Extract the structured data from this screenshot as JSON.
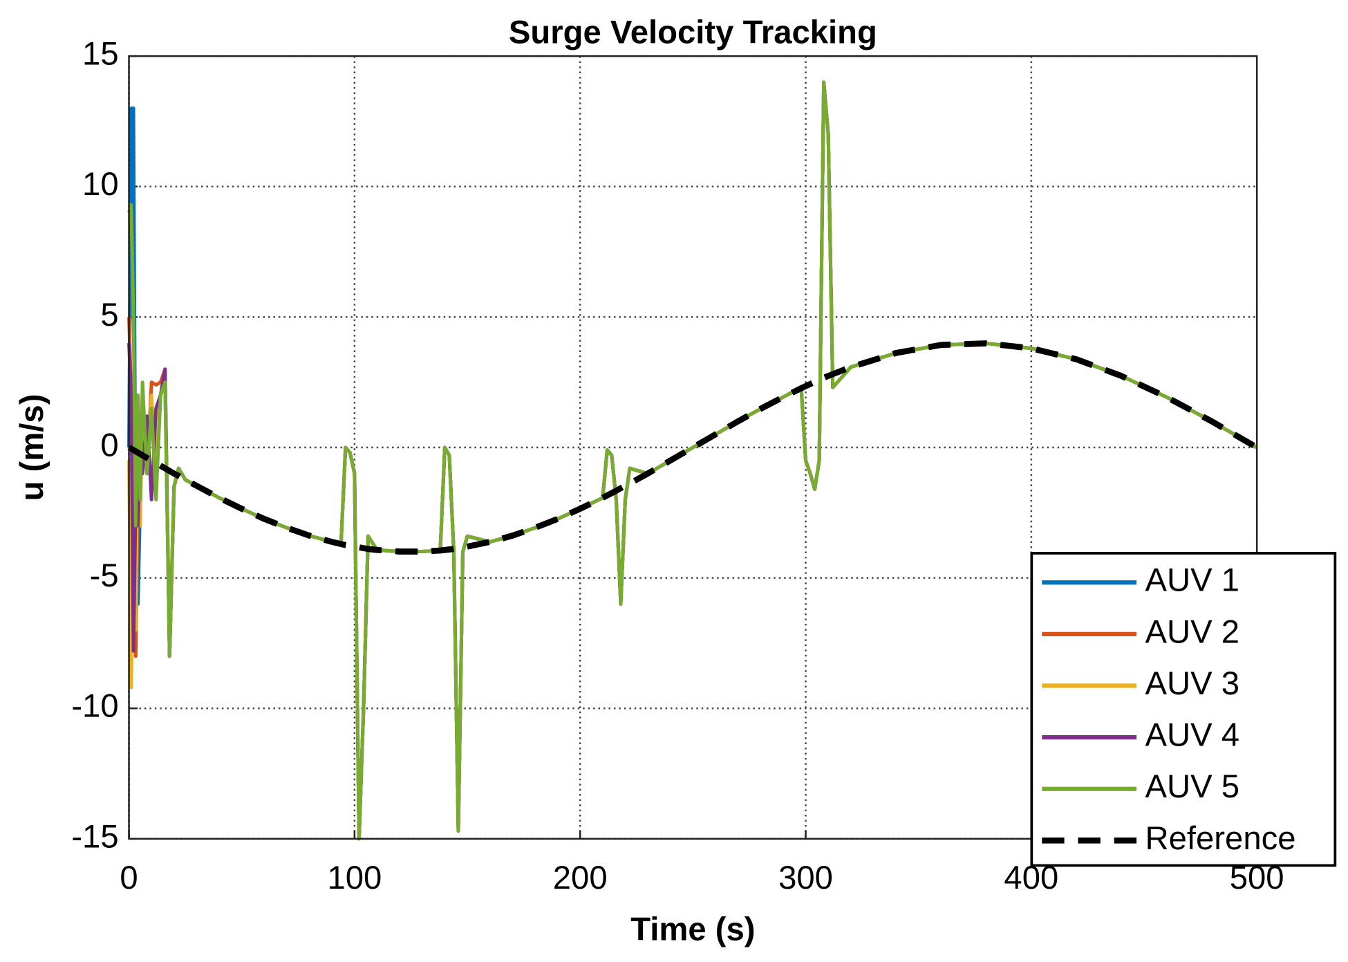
{
  "chart_data": {
    "type": "line",
    "title": "Surge Velocity Tracking",
    "xlabel": "Time (s)",
    "ylabel": "u (m/s)",
    "x": [
      0,
      1,
      2,
      3,
      4,
      5,
      6,
      8,
      10,
      12,
      14,
      16,
      18,
      20,
      22,
      25,
      30,
      40,
      50,
      60,
      70,
      80,
      90,
      94,
      96,
      98,
      100,
      102,
      104,
      106,
      110,
      120,
      130,
      138,
      140,
      142,
      144,
      146,
      148,
      150,
      160,
      170,
      180,
      190,
      200,
      210,
      212,
      214,
      216,
      218,
      220,
      222,
      230,
      240,
      250,
      260,
      270,
      280,
      290,
      298,
      300,
      302,
      304,
      306,
      308,
      310,
      312,
      320,
      340,
      360,
      380,
      400,
      420,
      440,
      460,
      480,
      500
    ],
    "series": [
      {
        "name": "AUV 1",
        "color": "#0072BD",
        "values": [
          0,
          13,
          13,
          -4,
          -6,
          -2,
          1,
          -1,
          1.5,
          -1.5,
          2,
          2.5,
          -8,
          -1.5,
          -0.8,
          -1.24,
          -1.47,
          -1.93,
          -2.35,
          -2.74,
          -3.08,
          -3.38,
          -3.62,
          -3.7,
          0,
          -0.2,
          -1,
          -15,
          -10,
          -3.4,
          -3.93,
          -3.99,
          -3.99,
          -3.95,
          0,
          -0.3,
          -4,
          -14.7,
          -4,
          -3.4,
          -3.62,
          -3.38,
          -3.08,
          -2.74,
          -2.35,
          -1.93,
          -0.1,
          -0.3,
          -2,
          -6,
          -2,
          -0.8,
          -1,
          -0.5,
          0,
          0.5,
          1,
          1.48,
          1.93,
          2.3,
          -0.5,
          -1,
          -1.6,
          -0.5,
          14,
          12,
          2.3,
          3.08,
          3.62,
          3.93,
          3.99,
          3.8,
          3.38,
          2.74,
          1.93,
          1,
          0
        ]
      },
      {
        "name": "AUV 2",
        "color": "#D95319",
        "values": [
          5,
          2,
          -3,
          -8,
          -2,
          1,
          1.5,
          -1,
          2.5,
          2.4,
          2.5,
          3,
          -8,
          -1.5,
          -0.8,
          -1.24,
          -1.47,
          -1.93,
          -2.35,
          -2.74,
          -3.08,
          -3.38,
          -3.62,
          -3.7,
          0,
          -0.2,
          -1,
          -15,
          -10,
          -3.4,
          -3.93,
          -3.99,
          -3.99,
          -3.95,
          0,
          -0.3,
          -4,
          -14.7,
          -4,
          -3.4,
          -3.62,
          -3.38,
          -3.08,
          -2.74,
          -2.35,
          -1.93,
          -0.1,
          -0.3,
          -2,
          -6,
          -2,
          -0.8,
          -1,
          -0.5,
          0,
          0.5,
          1,
          1.48,
          1.93,
          2.3,
          -0.5,
          -1,
          -1.6,
          -0.5,
          14,
          12,
          2.3,
          3.08,
          3.62,
          3.93,
          3.99,
          3.8,
          3.38,
          2.74,
          1.93,
          1,
          0
        ]
      },
      {
        "name": "AUV 3",
        "color": "#EDB120",
        "values": [
          -0.5,
          -9.2,
          -3,
          -7,
          2,
          -3,
          2,
          -1,
          2,
          -1,
          2,
          2.8,
          -7.5,
          -1.5,
          -0.8,
          -1.24,
          -1.47,
          -1.93,
          -2.35,
          -2.74,
          -3.08,
          -3.38,
          -3.62,
          -3.7,
          0,
          -0.2,
          -1,
          -15,
          -10,
          -3.4,
          -3.93,
          -3.99,
          -3.99,
          -3.95,
          0,
          -0.3,
          -4,
          -14.7,
          -4,
          -3.4,
          -3.62,
          -3.38,
          -3.08,
          -2.74,
          -2.35,
          -1.93,
          -0.1,
          -0.3,
          -2,
          -6,
          -2,
          -0.8,
          -1,
          -0.5,
          0,
          0.5,
          1,
          1.48,
          1.93,
          2.3,
          -0.5,
          -1,
          -1.6,
          -0.5,
          14,
          12,
          2.3,
          3.08,
          3.62,
          3.93,
          3.99,
          3.8,
          3.38,
          2.74,
          1.93,
          1,
          0
        ]
      },
      {
        "name": "AUV 4",
        "color": "#7E2F8E",
        "values": [
          4,
          2,
          -7.8,
          -2,
          -3,
          1,
          -1,
          1.2,
          -2,
          1.5,
          2,
          3,
          -8,
          -1.5,
          -0.8,
          -1.24,
          -1.47,
          -1.93,
          -2.35,
          -2.74,
          -3.08,
          -3.38,
          -3.62,
          -3.7,
          0,
          -0.2,
          -1,
          -15,
          -10,
          -3.4,
          -3.93,
          -3.99,
          -3.99,
          -3.95,
          0,
          -0.3,
          -4,
          -14.7,
          -4,
          -3.4,
          -3.62,
          -3.38,
          -3.08,
          -2.74,
          -2.35,
          -1.93,
          -0.1,
          -0.3,
          -2,
          -6,
          -2,
          -0.8,
          -1,
          -0.5,
          0,
          0.5,
          1,
          1.48,
          1.93,
          2.3,
          -0.5,
          -1,
          -1.6,
          -0.5,
          14,
          12,
          2.3,
          3.08,
          3.62,
          3.93,
          3.99,
          3.8,
          3.38,
          2.74,
          1.93,
          1,
          0
        ]
      },
      {
        "name": "AUV 5",
        "color": "#77AC30",
        "values": [
          9,
          9.3,
          5,
          -3,
          2,
          -2,
          2.5,
          -1,
          1.5,
          -2,
          2,
          2.5,
          -8,
          -1.5,
          -0.8,
          -1.24,
          -1.47,
          -1.93,
          -2.35,
          -2.74,
          -3.08,
          -3.38,
          -3.62,
          -3.7,
          0,
          -0.2,
          -1,
          -15,
          -10,
          -3.4,
          -3.93,
          -3.99,
          -3.99,
          -3.95,
          0,
          -0.3,
          -4,
          -14.7,
          -4,
          -3.4,
          -3.62,
          -3.38,
          -3.08,
          -2.74,
          -2.35,
          -1.93,
          -0.1,
          -0.3,
          -2,
          -6,
          -2,
          -0.8,
          -1,
          -0.5,
          0,
          0.5,
          1,
          1.48,
          1.93,
          2.3,
          -0.5,
          -1,
          -1.6,
          -0.5,
          14,
          12,
          2.3,
          3.08,
          3.62,
          3.93,
          3.99,
          3.8,
          3.38,
          2.74,
          1.93,
          1,
          0
        ]
      },
      {
        "name": "Reference",
        "color": "#000000",
        "dashed": true,
        "values": [
          0,
          -0.05,
          -0.1,
          -0.15,
          -0.2,
          -0.25,
          -0.3,
          -0.4,
          -0.5,
          -0.6,
          -0.7,
          -0.8,
          -0.9,
          -1,
          -1.09,
          -1.24,
          -1.47,
          -1.93,
          -2.35,
          -2.74,
          -3.08,
          -3.38,
          -3.62,
          -3.7,
          -3.74,
          -3.77,
          -3.8,
          -3.83,
          -3.86,
          -3.89,
          -3.93,
          -3.99,
          -3.99,
          -3.95,
          -3.93,
          -3.91,
          -3.89,
          -3.86,
          -3.83,
          -3.8,
          -3.62,
          -3.38,
          -3.08,
          -2.74,
          -2.35,
          -1.93,
          -1.84,
          -1.75,
          -1.66,
          -1.56,
          -1.47,
          -1.38,
          -1,
          -0.5,
          0,
          0.5,
          1,
          1.48,
          1.93,
          2.27,
          2.35,
          2.43,
          2.51,
          2.59,
          2.67,
          2.74,
          2.81,
          3.08,
          3.62,
          3.93,
          3.99,
          3.8,
          3.38,
          2.74,
          1.93,
          1,
          0
        ]
      }
    ],
    "xlim": [
      0,
      500
    ],
    "xticks": [
      0,
      100,
      200,
      300,
      400,
      500
    ],
    "ylim": [
      -15,
      15
    ],
    "yticks": [
      -15,
      -10,
      -5,
      0,
      5,
      10,
      15
    ],
    "grid": true,
    "legend": "lower right"
  }
}
